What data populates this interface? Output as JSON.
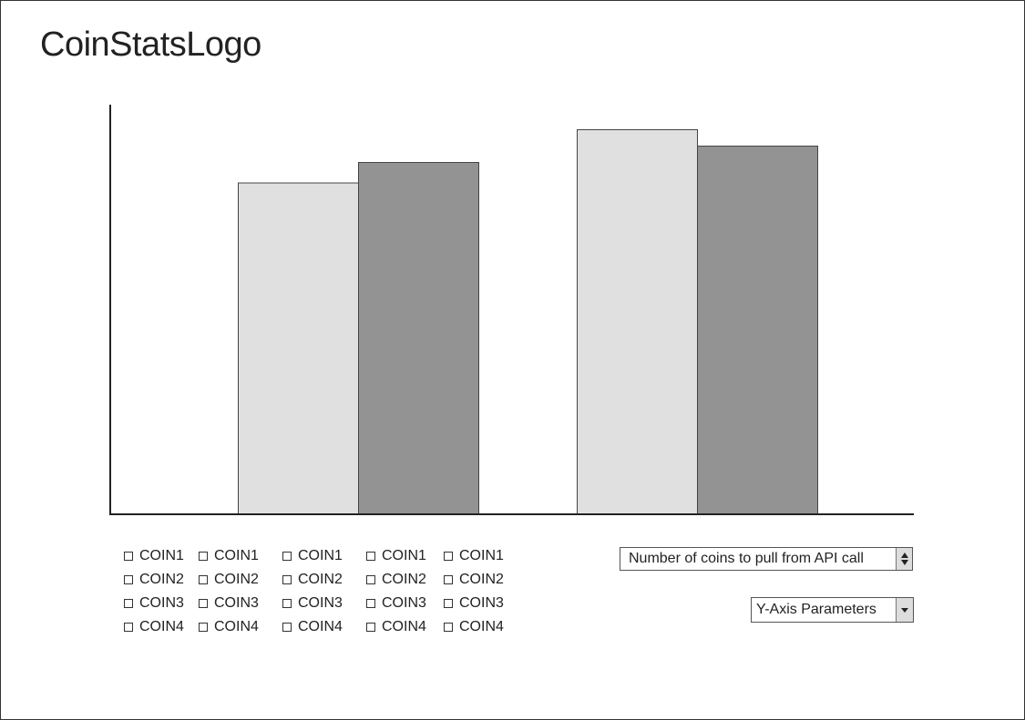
{
  "header": {
    "logo_text": "CoinStatsLogo"
  },
  "chart_data": {
    "type": "bar",
    "categories": [
      "",
      ""
    ],
    "series": [
      {
        "values": [
          81,
          94
        ],
        "color": "#e0e0e0"
      },
      {
        "values": [
          86,
          90
        ],
        "color": "#939393"
      }
    ],
    "ylim": [
      0,
      100
    ],
    "title": "",
    "xlabel": "",
    "ylabel": "",
    "grid": false
  },
  "coin_selector": {
    "columns": [
      [
        "COIN1",
        "COIN2",
        "COIN3",
        "COIN4"
      ],
      [
        "COIN1",
        "COIN2",
        "COIN3",
        "COIN4"
      ],
      [
        "COIN1",
        "COIN2",
        "COIN3",
        "COIN4"
      ],
      [
        "COIN1",
        "COIN2",
        "COIN3",
        "COIN4"
      ],
      [
        "COIN1",
        "COIN2",
        "COIN3",
        "COIN4"
      ]
    ]
  },
  "controls": {
    "coin_count_label": "Number of coins to pull from API call",
    "y_axis_label": "Y-Axis Parameters",
    "coin_count_icon": "up-down-stepper-icon",
    "y_axis_icon": "dropdown-arrow-icon"
  }
}
